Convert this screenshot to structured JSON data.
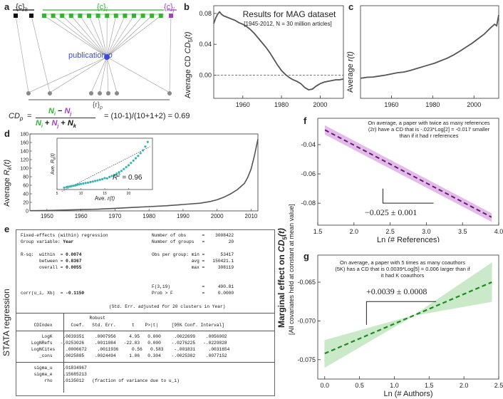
{
  "panel_labels": {
    "a": "a",
    "b": "b",
    "c": "c",
    "d": "d",
    "e": "e",
    "f": "f",
    "g": "g"
  },
  "panel_a": {
    "ck_label": "{c}",
    "ck_sub": "k",
    "ci_label": "{c}",
    "ci_sub": "i",
    "cj_label": "{c}",
    "cj_sub": "j",
    "pub_label": "publication",
    "pub_var": "p",
    "rp_label": "{r}",
    "rp_sub": "p",
    "cd_lhs": "CD",
    "cd_lhs_sub": "p",
    "num_ni": "N",
    "num_ni_sub": "i",
    "num_minus": " − ",
    "num_nj": "N",
    "num_nj_sub": "j",
    "den_ni": "N",
    "den_ni_sub": "i",
    "den_plus1": " + ",
    "den_nj": "N",
    "den_nj_sub": "j",
    "den_plus2": " + ",
    "den_nk": "N",
    "den_nk_sub": "k",
    "cd_eq": "=",
    "cd_example": "=  (10-1)/(10+1+2) = 0.69",
    "colors": {
      "ck": "#111111",
      "ci": "#2db82d",
      "cj": "#a040c0",
      "pub": "#3b4bd8",
      "ref": "#888888"
    }
  },
  "chart_data": [
    {
      "id": "b",
      "type": "line",
      "title": "Results for MAG dataset",
      "subtitle": "[1945-2012, N = 30 million articles]",
      "ylabel": "Average CD",
      "ylabel_sub": "5",
      "ylabel_arg": "(t)",
      "xlim": [
        1945,
        2012
      ],
      "ylim": [
        -0.03,
        0.09
      ],
      "xticks": [
        "1960",
        "1980",
        "2000"
      ],
      "yticks": [
        "0.08",
        "0.04",
        "0.00"
      ],
      "x": [
        1945,
        1946,
        1947,
        1948,
        1949,
        1950,
        1952,
        1954,
        1956,
        1958,
        1960,
        1962,
        1964,
        1966,
        1968,
        1970,
        1972,
        1974,
        1976,
        1978,
        1980,
        1982,
        1984,
        1986,
        1988,
        1990,
        1992,
        1994,
        1996,
        1998,
        2000,
        2002,
        2004,
        2006,
        2008,
        2010,
        2012
      ],
      "y": [
        0.067,
        0.074,
        0.079,
        0.082,
        0.079,
        0.077,
        0.075,
        0.073,
        0.071,
        0.068,
        0.066,
        0.063,
        0.059,
        0.054,
        0.048,
        0.042,
        0.036,
        0.029,
        0.021,
        0.013,
        0.006,
        0.001,
        -0.003,
        -0.006,
        -0.008,
        -0.011,
        -0.016,
        -0.019,
        -0.018,
        -0.014,
        -0.011,
        -0.009,
        -0.008,
        -0.007,
        -0.006,
        -0.006,
        -0.005
      ],
      "reference_line": 0.0
    },
    {
      "id": "c",
      "type": "line",
      "ylabel": "Average",
      "ylabel_var": "r(t)",
      "xlim": [
        1945,
        2012
      ],
      "ylim": [
        0,
        30
      ],
      "xticks": [
        "1960",
        "1980",
        "2000"
      ],
      "x": [
        1945,
        1948,
        1951,
        1954,
        1957,
        1960,
        1963,
        1966,
        1969,
        1972,
        1975,
        1978,
        1981,
        1984,
        1987,
        1990,
        1993,
        1996,
        1999,
        2002,
        2005,
        2008,
        2010,
        2011,
        2012
      ],
      "y": [
        6.5,
        6.8,
        6.9,
        7.2,
        7.5,
        7.9,
        8.3,
        8.5,
        9.0,
        9.6,
        10.2,
        10.8,
        11.4,
        12.2,
        13.0,
        14.0,
        15.2,
        16.5,
        17.8,
        19.3,
        20.8,
        22.8,
        24.0,
        23.5,
        27.0
      ]
    },
    {
      "id": "d",
      "type": "line",
      "ylabel": "Average",
      "ylabel_var": "R",
      "ylabel_sub": "k",
      "ylabel_arg": "(t)",
      "xlim": [
        1945,
        2012
      ],
      "ylim": [
        0,
        180
      ],
      "xticks": [
        "1950",
        "1960",
        "1970",
        "1980",
        "1990",
        "2000",
        "2010"
      ],
      "yticks": [
        "0",
        "20",
        "40",
        "60",
        "80",
        "100",
        "120",
        "140",
        "160",
        "180"
      ],
      "x": [
        1945,
        1950,
        1955,
        1960,
        1965,
        1970,
        1975,
        1980,
        1985,
        1990,
        1995,
        1998,
        2000,
        2002,
        2004,
        2006,
        2008,
        2009,
        2010,
        2011,
        2012
      ],
      "y": [
        0.5,
        1,
        2,
        3,
        4,
        6,
        8,
        10,
        12,
        15,
        18,
        22,
        26,
        32,
        40,
        50,
        64,
        78,
        98,
        130,
        168
      ],
      "inset": {
        "xlabel": "Ave.",
        "xlabel_var": "r(t)",
        "ylabel": "Ave.",
        "ylabel_var": "R",
        "ylabel_sub": "k",
        "ylabel_arg": "(t)",
        "r2_label": "R",
        "r2_sup": "2",
        "r2_value": " = 0.96",
        "xticks": [
          "5",
          "10",
          "15",
          "20"
        ],
        "x": [
          6.5,
          7,
          7.3,
          7.7,
          8,
          8.4,
          8.8,
          9.2,
          9.6,
          10,
          10.5,
          11,
          11.5,
          12,
          12.5,
          13,
          13.5,
          14,
          14.5,
          15,
          15.5,
          16,
          16.5,
          17,
          17.5,
          18,
          18.5,
          19,
          19.5,
          20,
          20.5,
          21,
          21.5,
          22,
          22.5,
          23,
          23.5,
          24
        ],
        "y": [
          2,
          2.5,
          3,
          3.2,
          3.6,
          4,
          4.4,
          5,
          5.5,
          6,
          6.5,
          7,
          7.4,
          8,
          8.5,
          9.2,
          9.8,
          10.5,
          11.2,
          12.2,
          12,
          13.5,
          14.5,
          15.5,
          17,
          18.5,
          20,
          22,
          24,
          26,
          28.5,
          31,
          33.5,
          36,
          39,
          42,
          46,
          51
        ]
      }
    },
    {
      "id": "f",
      "type": "line",
      "xlabel": "Ln (# References)",
      "xlim": [
        1.5,
        4.0
      ],
      "ylim": [
        -0.095,
        -0.022
      ],
      "xticks": [
        "1.5",
        "2.0",
        "2.5",
        "3.0",
        "3.5",
        "4.0"
      ],
      "yticks": [
        "-0.04",
        "-0.06",
        "-0.08"
      ],
      "x": [
        1.6,
        3.9
      ],
      "y": [
        -0.03,
        -0.0895
      ],
      "ci_upper": [
        -0.027,
        -0.087
      ],
      "ci_lower": [
        -0.033,
        -0.0925
      ],
      "annotation": "On average, a paper with twice as many references (2r) have a CD that is -.023*Log[2] = -0.017 smaller than if it had r references",
      "slope_label": "−0.025 ± 0.001",
      "color": "#b040c0"
    },
    {
      "id": "g",
      "type": "line",
      "xlabel": "Ln (# Authors)",
      "xlim": [
        -0.1,
        2.5
      ],
      "ylim": [
        -0.0775,
        -0.0615
      ],
      "xticks": [
        "0.0",
        "0.5",
        "1.0",
        "1.5",
        "2.0",
        "2.5"
      ],
      "yticks": [
        "-0.065",
        "-0.070",
        "-0.075"
      ],
      "x": [
        0.0,
        2.4
      ],
      "y": [
        -0.0742,
        -0.065
      ],
      "ci_upper": [
        -0.0725,
        -0.0625
      ],
      "ci_lower": [
        -0.076,
        -0.0675
      ],
      "pivot_x": 1.28,
      "annotation": "On average, a paper with 5 times as many coauthors (5K) has a CD that is 0.0039*Log[5] = 0.006 larger than if it had K coauthors",
      "slope_label": "+0.0039 ± 0.0008",
      "color": "#2eab2e"
    }
  ],
  "marginal_ylabel": {
    "main": "Marginal effect on",
    "var": "CD",
    "sub": "5",
    "arg": "(t)",
    "sub_label": "[All covariates held at constant at mean value]"
  },
  "stata_label": "STATA regression",
  "stata": {
    "lines_left": [
      "Fixed-effects (within) regression",
      "Group variable: Year",
      "",
      "R-sq:  within  = 0.0074",
      "       between = 0.8367",
      "       overall = 0.0055",
      "",
      "",
      "",
      "corr(u_i, Xb)  = -0.1150"
    ],
    "lines_right": [
      "Number of obs      =    3008422",
      "Number of groups   =         20",
      "",
      "Obs per group: min =      53417",
      "               avg =   150421.1",
      "               max =     308119",
      "",
      "F(3,19)            =     490.81",
      "Prob > F           =     0.0000"
    ],
    "std_err_note": "(Std. Err. adjusted for 20 clusters in Year)",
    "table_header1": "                          Robust",
    "table_header2": "     CDIndex       Coef.   Std. Err.      t    P>|t|     [95% Conf. Interval]",
    "rows": [
      "        LogK    .0039351    .0007956     4.95   0.000     .0022699    .0056002",
      "    LogNRefs   -.0253026    .0011084   -22.83   0.000    -.0276225   -.0229828",
      "    LogNCites    .0006672    .0011936     0.56   0.583    -.001831     .0031654",
      "       _cons    .0025885    .0024494     1.06   0.304    -.0025382    .0077152"
    ],
    "sigma_rows": [
      "     sigma_u    .01834967",
      "     sigma_e    .15685213",
      "         rho    .0135012   (fraction of variance due to u_i)"
    ]
  }
}
